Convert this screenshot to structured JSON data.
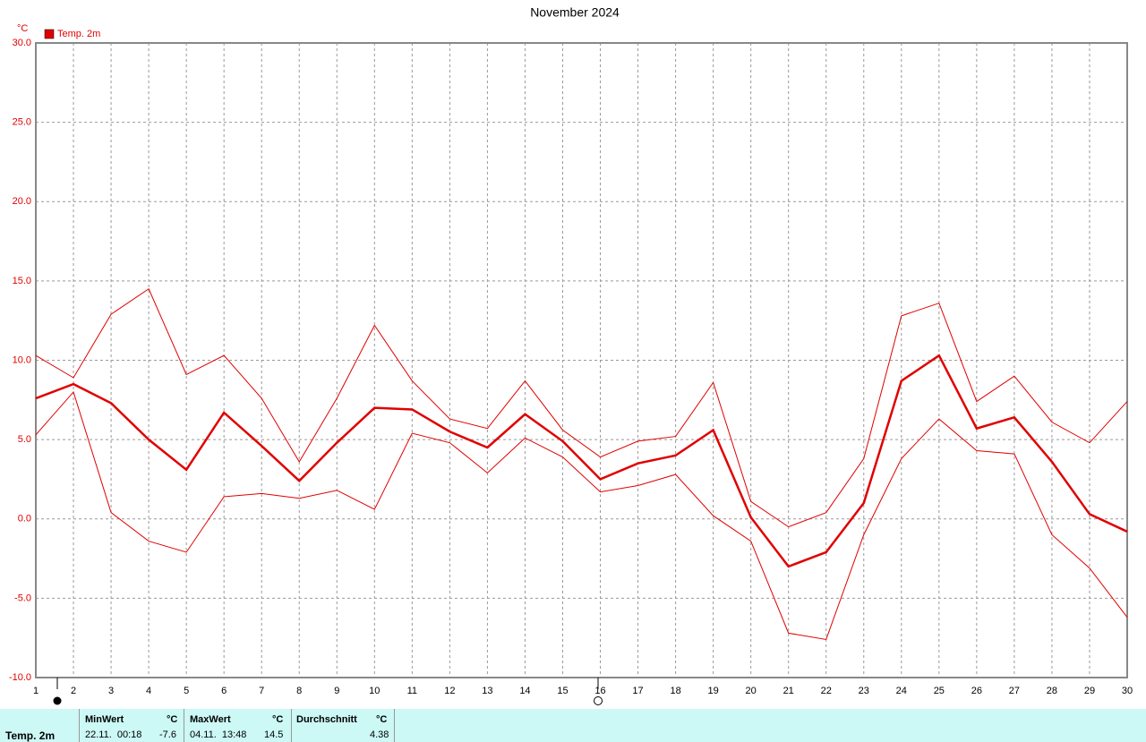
{
  "chart_data": {
    "type": "line",
    "title": "November 2024",
    "y_unit": "°C",
    "legend": "top-left",
    "grid": true,
    "x": [
      1,
      2,
      3,
      4,
      5,
      6,
      7,
      8,
      9,
      10,
      11,
      12,
      13,
      14,
      15,
      16,
      17,
      18,
      19,
      20,
      21,
      22,
      23,
      24,
      25,
      26,
      27,
      28,
      29,
      30
    ],
    "xlim": [
      1,
      30
    ],
    "xticks": [
      1,
      2,
      3,
      4,
      5,
      6,
      7,
      8,
      9,
      10,
      11,
      12,
      13,
      14,
      15,
      16,
      17,
      18,
      19,
      20,
      21,
      22,
      23,
      24,
      25,
      26,
      27,
      28,
      29,
      30
    ],
    "ylim": [
      -10,
      30
    ],
    "yticks": [
      {
        "value": -10,
        "label": "-10.0"
      },
      {
        "value": -5,
        "label": "-5.0"
      },
      {
        "value": 0,
        "label": "0.0"
      },
      {
        "value": 5,
        "label": "5.0"
      },
      {
        "value": 10,
        "label": "10.0"
      },
      {
        "value": 15,
        "label": "15.0"
      },
      {
        "value": 20,
        "label": "20.0"
      },
      {
        "value": 25,
        "label": "25.0"
      },
      {
        "value": 30,
        "label": "30.0"
      }
    ],
    "series": [
      {
        "name": "Temp. 2m",
        "color": "#e00000",
        "values": [
          7.6,
          8.5,
          7.3,
          5.0,
          3.1,
          6.7,
          4.6,
          2.4,
          4.8,
          7.0,
          6.9,
          5.5,
          4.5,
          6.6,
          4.9,
          2.5,
          3.5,
          4.0,
          5.6,
          0.1,
          -3.0,
          -2.1,
          1.0,
          8.7,
          10.3,
          5.7,
          6.4,
          3.6,
          0.3,
          -0.8
        ],
        "max": [
          10.3,
          8.9,
          12.9,
          14.5,
          9.1,
          10.3,
          7.6,
          3.6,
          7.6,
          12.2,
          8.7,
          6.3,
          5.7,
          8.7,
          5.6,
          3.9,
          4.9,
          5.2,
          8.6,
          1.1,
          -0.5,
          0.4,
          3.8,
          12.8,
          13.6,
          7.4,
          9.0,
          6.1,
          4.8,
          7.4
        ],
        "min": [
          5.3,
          8.0,
          0.4,
          -1.4,
          -2.1,
          1.4,
          1.6,
          1.3,
          1.8,
          0.6,
          5.4,
          4.8,
          2.9,
          5.1,
          3.9,
          1.7,
          2.1,
          2.8,
          0.2,
          -1.4,
          -7.2,
          -7.6,
          -1.0,
          3.8,
          6.3,
          4.3,
          4.1,
          -1.0,
          -3.1,
          -6.2
        ]
      }
    ]
  },
  "summary": {
    "label": "Temp. 2m",
    "min": {
      "title": "MinWert",
      "unit": "°C",
      "time": "22.11.  00:18",
      "value": -7.6
    },
    "max": {
      "title": "MaxWert",
      "unit": "°C",
      "time": "04.11.  13:48",
      "value": 14.5
    },
    "avg": {
      "title": "Durchschnitt",
      "unit": "°C",
      "value": 4.38
    }
  }
}
